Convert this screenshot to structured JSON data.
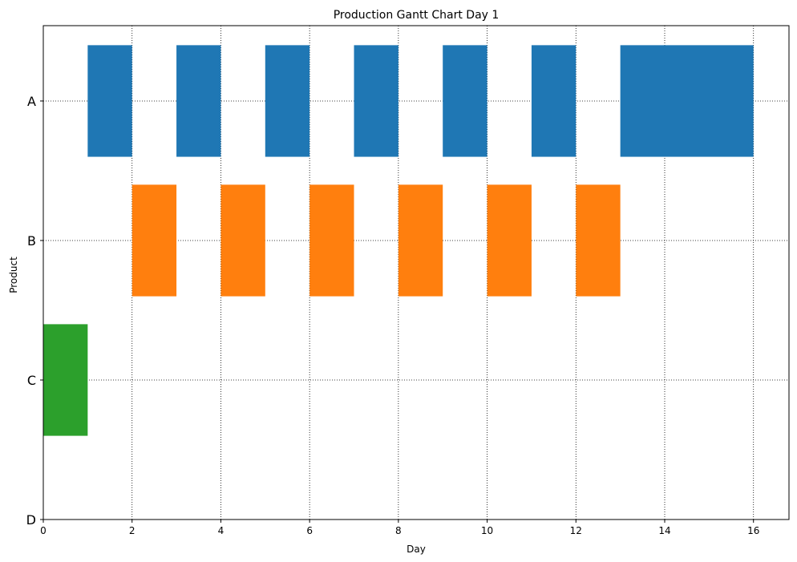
{
  "chart_data": {
    "type": "gantt",
    "title": "Production Gantt Chart Day 1",
    "xlabel": "Day",
    "ylabel": "Product",
    "xlim": [
      0,
      16.8
    ],
    "x_ticks": [
      0,
      2,
      4,
      6,
      8,
      10,
      12,
      14,
      16
    ],
    "categories": [
      "A",
      "B",
      "C",
      "D"
    ],
    "grid": true,
    "grid_style": "dotted",
    "series": [
      {
        "category": "A",
        "color": "#1f77b4",
        "bars": [
          [
            1,
            2
          ],
          [
            3,
            4
          ],
          [
            5,
            6
          ],
          [
            7,
            8
          ],
          [
            9,
            10
          ],
          [
            11,
            12
          ],
          [
            13,
            16
          ]
        ]
      },
      {
        "category": "B",
        "color": "#ff7f0e",
        "bars": [
          [
            2,
            3
          ],
          [
            4,
            5
          ],
          [
            6,
            7
          ],
          [
            8,
            9
          ],
          [
            10,
            11
          ],
          [
            12,
            13
          ]
        ]
      },
      {
        "category": "C",
        "color": "#2ca02c",
        "bars": [
          [
            0,
            1
          ]
        ]
      }
    ]
  }
}
